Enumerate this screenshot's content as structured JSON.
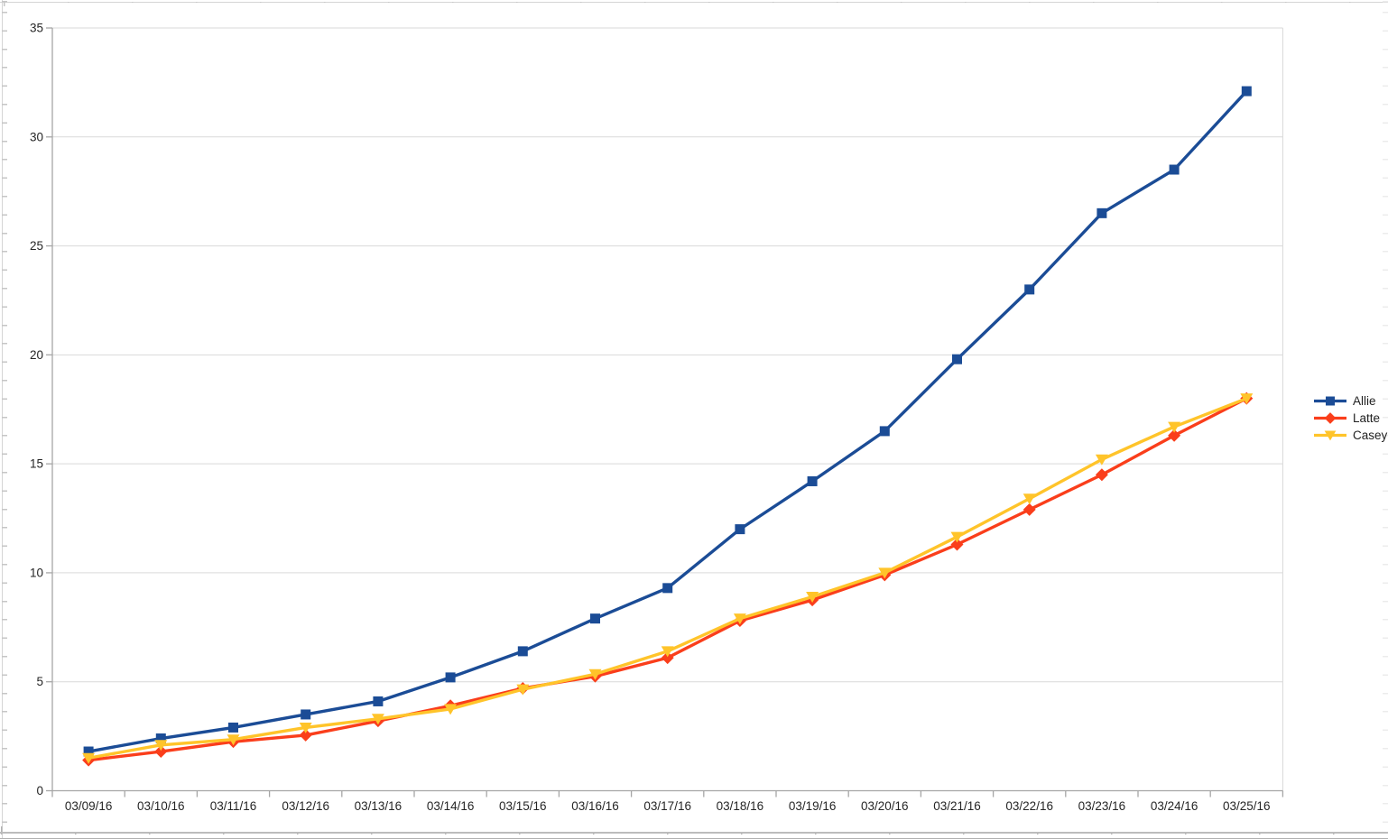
{
  "chart_data": {
    "type": "line",
    "title": "",
    "xlabel": "",
    "ylabel": "",
    "categories": [
      "03/09/16",
      "03/10/16",
      "03/11/16",
      "03/12/16",
      "03/13/16",
      "03/14/16",
      "03/15/16",
      "03/16/16",
      "03/17/16",
      "03/18/16",
      "03/19/16",
      "03/20/16",
      "03/21/16",
      "03/22/16",
      "03/23/16",
      "03/24/16",
      "03/25/16"
    ],
    "series": [
      {
        "name": "Allie",
        "color": "#1B4C96",
        "marker": "square",
        "values": [
          1.8,
          2.4,
          2.9,
          3.5,
          4.1,
          5.2,
          6.4,
          7.9,
          9.3,
          12.0,
          14.2,
          16.5,
          19.8,
          23.0,
          26.5,
          28.5,
          32.1
        ]
      },
      {
        "name": "Latte",
        "color": "#FA3E1B",
        "marker": "diamond",
        "values": [
          1.4,
          1.8,
          2.25,
          2.55,
          3.2,
          3.9,
          4.7,
          5.25,
          6.1,
          7.8,
          8.75,
          9.9,
          11.3,
          12.9,
          14.5,
          16.3,
          18.0
        ]
      },
      {
        "name": "Casey",
        "color": "#FFC42A",
        "marker": "triangle-down",
        "values": [
          1.5,
          2.1,
          2.35,
          2.9,
          3.3,
          3.75,
          4.65,
          5.35,
          6.4,
          7.9,
          8.9,
          10.0,
          11.65,
          13.4,
          15.2,
          16.7,
          18.0
        ]
      }
    ],
    "ylim": [
      0,
      35
    ],
    "y_ticks": [
      0,
      5,
      10,
      15,
      20,
      25,
      30,
      35
    ],
    "grid": "horizontal",
    "legend_position": "right"
  },
  "colors": {
    "gridline": "#D9D9D9",
    "axis": "#A6A6A6",
    "label": "#262626",
    "background": "#FFFFFF"
  }
}
